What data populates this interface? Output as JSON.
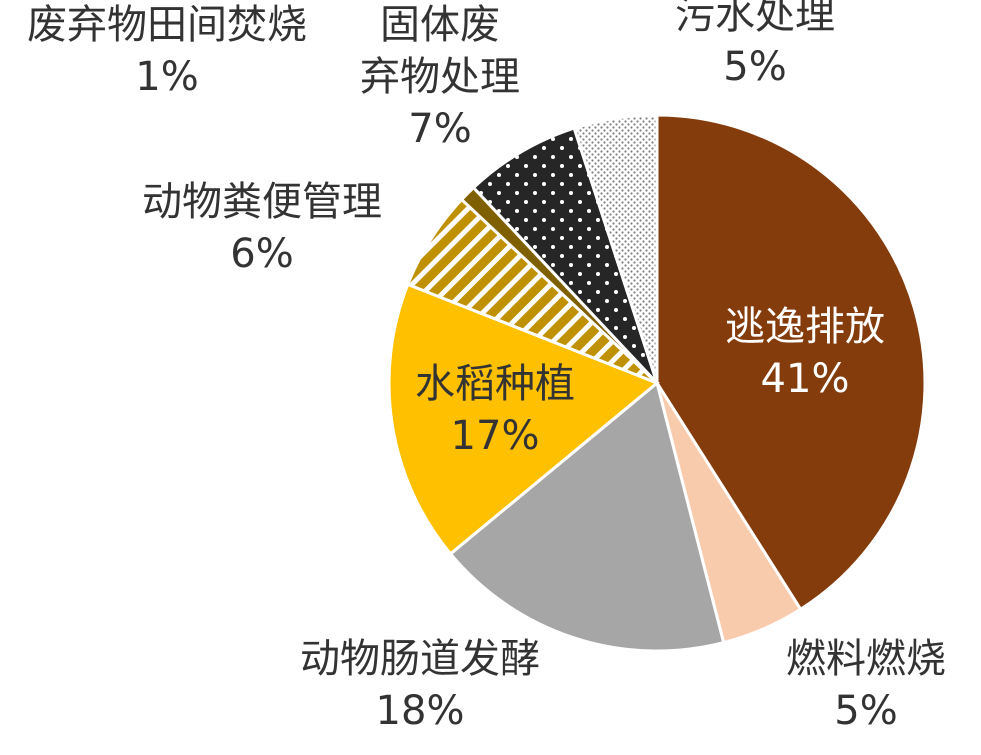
{
  "chart_data": {
    "type": "pie",
    "start_angle_deg": 0,
    "direction": "clockwise",
    "slices": [
      {
        "name": "逃逸排放",
        "value": 41,
        "label": "41%",
        "color": "#843C0C",
        "pattern": "solid"
      },
      {
        "name": "燃料燃烧",
        "value": 5,
        "label": "5%",
        "color": "#F8CBAD",
        "pattern": "solid"
      },
      {
        "name": "动物肠道发酵",
        "value": 18,
        "label": "18%",
        "color": "#A6A6A6",
        "pattern": "solid"
      },
      {
        "name": "水稻种植",
        "value": 17,
        "label": "17%",
        "color": "#FFC000",
        "pattern": "solid"
      },
      {
        "name": "动物粪便管理",
        "value": 6,
        "label": "6%",
        "color": "#BF9000",
        "pattern": "diagonal-stripes"
      },
      {
        "name": "废弃物田间焚烧",
        "value": 1,
        "label": "1%",
        "color": "#7F6000",
        "pattern": "solid"
      },
      {
        "name": "固体废弃物处理",
        "value": 7,
        "label": "7%",
        "color": "#262626",
        "pattern": "white-dots"
      },
      {
        "name": "污水处理",
        "value": 5,
        "label": "5%",
        "color": "#808080",
        "pattern": "fine-dots"
      }
    ],
    "label_lines": {
      "逃逸排放": [
        "逃逸排放"
      ],
      "燃料燃烧": [
        "燃料燃烧"
      ],
      "动物肠道发酵": [
        "动物肠道发酵"
      ],
      "水稻种植": [
        "水稻种植"
      ],
      "动物粪便管理": [
        "动物粪便管理"
      ],
      "废弃物田间焚烧": [
        "废弃物田间焚烧"
      ],
      "固体废弃物处理": [
        "固体废",
        "弃物处理"
      ],
      "污水处理": [
        "污水处理"
      ]
    }
  }
}
